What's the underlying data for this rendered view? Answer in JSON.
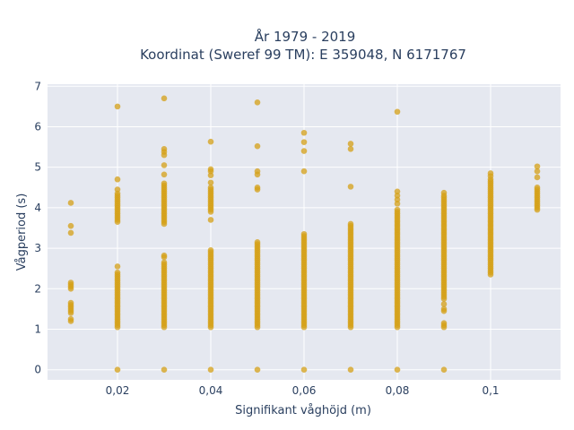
{
  "chart_data": {
    "type": "scatter",
    "title_line1": "År 1979 - 2019",
    "title_line2": "Koordinat (Sweref 99 TM): E 359048, N 6171767",
    "xlabel": "Signifikant våghöjd (m)",
    "ylabel": "Vågperiod (s)",
    "xlim": [
      0.005,
      0.115
    ],
    "ylim": [
      -0.25,
      7.05
    ],
    "x_ticks": [
      0.02,
      0.04,
      0.06,
      0.08,
      0.1
    ],
    "x_tick_labels": [
      "0,02",
      "0,04",
      "0,06",
      "0,08",
      "0,1"
    ],
    "y_ticks": [
      0,
      1,
      2,
      3,
      4,
      5,
      6,
      7
    ],
    "y_tick_labels": [
      "0",
      "1",
      "2",
      "3",
      "4",
      "5",
      "6",
      "7"
    ],
    "grid": true,
    "colors": {
      "marker": "#d4a017",
      "plot_bg": "#e5e8f0",
      "grid": "#ffffff"
    },
    "series": [
      {
        "columns": [
          {
            "x": 0.01,
            "ranges": [
              [
                1.2,
                1.25
              ],
              [
                1.4,
                1.65
              ],
              [
                2.0,
                2.15
              ]
            ],
            "points": [
              3.38,
              3.55,
              4.12
            ]
          },
          {
            "x": 0.02,
            "ranges": [
              [
                0,
                0
              ],
              [
                1.05,
                2.4
              ],
              [
                3.65,
                4.35
              ]
            ],
            "points": [
              2.55,
              4.45,
              4.7,
              6.5
            ]
          },
          {
            "x": 0.03,
            "ranges": [
              [
                0,
                0
              ],
              [
                1.05,
                2.65
              ],
              [
                3.6,
                4.6
              ]
            ],
            "points": [
              2.78,
              2.82,
              4.82,
              5.05,
              5.3,
              5.38,
              5.45,
              6.7
            ]
          },
          {
            "x": 0.04,
            "ranges": [
              [
                0,
                0
              ],
              [
                1.05,
                2.95
              ],
              [
                3.9,
                4.5
              ]
            ],
            "points": [
              3.7,
              4.62,
              4.8,
              4.9,
              4.95,
              5.63
            ]
          },
          {
            "x": 0.05,
            "ranges": [
              [
                0,
                0
              ],
              [
                1.05,
                3.15
              ]
            ],
            "points": [
              4.45,
              4.5,
              4.82,
              4.9,
              5.52,
              6.6
            ]
          },
          {
            "x": 0.06,
            "ranges": [
              [
                0,
                0
              ],
              [
                1.05,
                3.35
              ]
            ],
            "points": [
              4.9,
              5.4,
              5.62,
              5.85
            ]
          },
          {
            "x": 0.07,
            "ranges": [
              [
                0,
                0
              ],
              [
                1.05,
                3.6
              ]
            ],
            "points": [
              4.52,
              5.45,
              5.58
            ]
          },
          {
            "x": 0.08,
            "ranges": [
              [
                0,
                0
              ],
              [
                1.05,
                3.95
              ]
            ],
            "points": [
              4.1,
              4.2,
              4.3,
              4.4,
              6.37
            ]
          },
          {
            "x": 0.09,
            "ranges": [
              [
                0,
                0
              ],
              [
                1.05,
                1.15
              ],
              [
                1.45,
                1.5
              ],
              [
                1.75,
                4.3
              ]
            ],
            "points": [
              1.62,
              4.37
            ]
          },
          {
            "x": 0.1,
            "ranges": [
              [
                2.35,
                4.7
              ]
            ],
            "points": [
              4.78,
              4.85
            ]
          },
          {
            "x": 0.11,
            "ranges": [
              [
                3.95,
                4.5
              ]
            ],
            "points": [
              4.75,
              4.9,
              5.02
            ]
          }
        ]
      }
    ]
  }
}
